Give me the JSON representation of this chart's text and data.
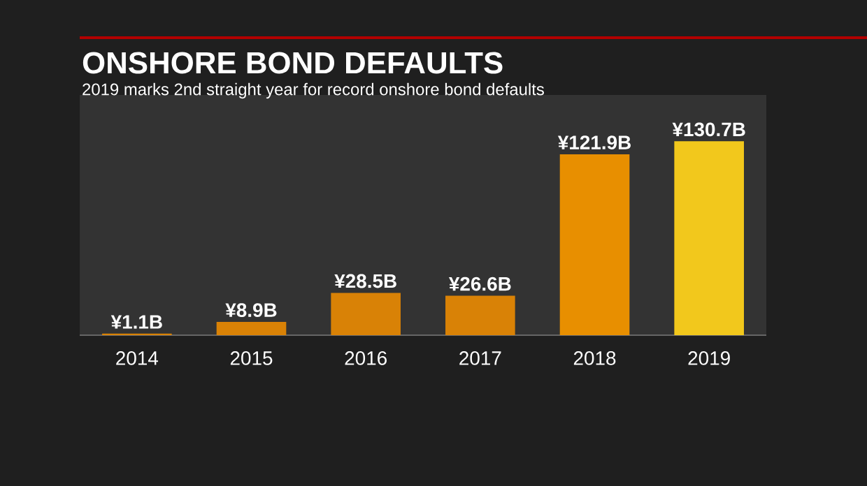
{
  "chart_data": {
    "type": "bar",
    "title": "ONSHORE BOND DEFAULTS",
    "subtitle": "2019 marks 2nd straight year for record onshore bond defaults",
    "categories": [
      "2014",
      "2015",
      "2016",
      "2017",
      "2018",
      "2019"
    ],
    "values": [
      1.1,
      8.9,
      28.5,
      26.6,
      121.9,
      130.7
    ],
    "value_labels": [
      "¥1.1B",
      "¥8.9B",
      "¥28.5B",
      "¥26.6B",
      "¥121.9B",
      "¥130.7B"
    ],
    "colors": [
      "#d98206",
      "#d98206",
      "#d98206",
      "#d98206",
      "#e88f00",
      "#f2c81c"
    ],
    "ylim": [
      0,
      160
    ],
    "tick_labels": "x"
  }
}
